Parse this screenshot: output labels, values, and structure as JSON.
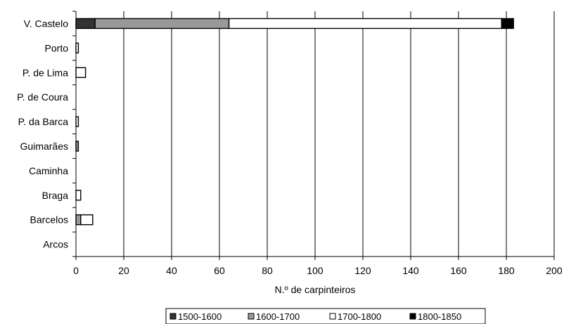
{
  "chart_data": {
    "type": "bar",
    "orientation": "horizontal",
    "stacked": true,
    "categories": [
      "V. Castelo",
      "Porto",
      "P. de Lima",
      "P. de Coura",
      "P. da Barca",
      "Guimarães",
      "Caminha",
      "Braga",
      "Barcelos",
      "Arcos"
    ],
    "series": [
      {
        "name": "1500-1600",
        "color": "#333333",
        "values": [
          8,
          0,
          0,
          0,
          0,
          0,
          0,
          0,
          0,
          0
        ]
      },
      {
        "name": "1600-1700",
        "color": "#999999",
        "values": [
          56,
          0,
          0,
          0,
          0,
          1,
          0,
          0,
          2,
          0
        ]
      },
      {
        "name": "1700-1800",
        "color": "#ffffff",
        "values": [
          114,
          1,
          4,
          0,
          1,
          0,
          0,
          2,
          5,
          0
        ]
      },
      {
        "name": "1800-1850",
        "color": "#000000",
        "values": [
          5,
          0,
          0,
          0,
          0,
          0,
          0,
          0,
          0,
          0
        ]
      }
    ],
    "xlabel": "N.º de carpinteiros",
    "xlim": [
      0,
      200
    ],
    "xticks": [
      0,
      20,
      40,
      60,
      80,
      100,
      120,
      140,
      160,
      180,
      200
    ],
    "grid": "vertical",
    "legend": "bottom"
  }
}
